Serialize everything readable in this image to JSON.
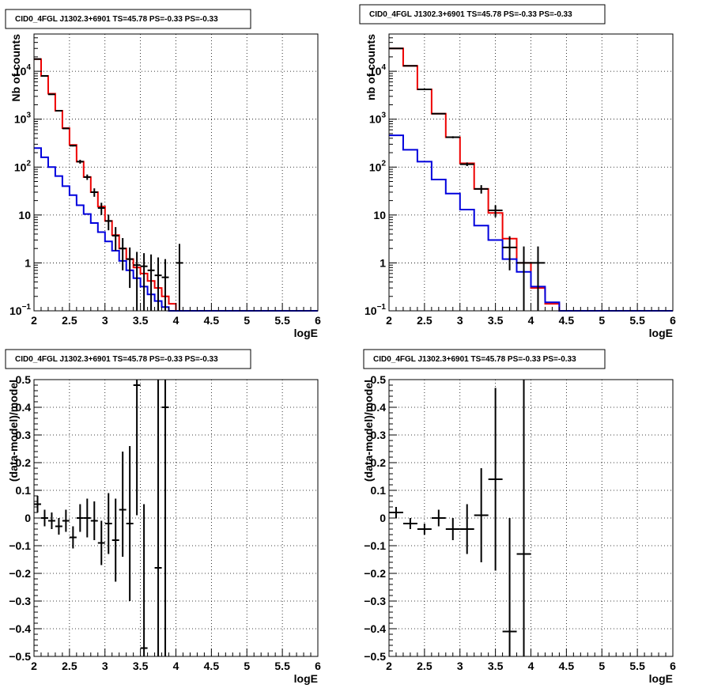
{
  "chart_data": [
    {
      "type": "step-histogram-log",
      "title": "CID0_4FGL J1302.3+6901 TS=45.78 PS=-0.33 PS=-0.33",
      "xlabel": "logE",
      "ylabel": "Nb of counts",
      "xlim": [
        2,
        6
      ],
      "ylim": [
        0.1,
        60000
      ],
      "log_y": true,
      "grid": true,
      "bin_width": 0.1,
      "x_ticks": [
        "2",
        "2.5",
        "3",
        "3.5",
        "4",
        "4.5",
        "5",
        "5.5",
        "6"
      ],
      "y_ticks": [
        {
          "v": 0.1,
          "m": "10",
          "e": "−1"
        },
        {
          "v": 1,
          "m": "1",
          "e": ""
        },
        {
          "v": 10,
          "m": "10",
          "e": ""
        },
        {
          "v": 100,
          "m": "10",
          "e": "2"
        },
        {
          "v": 1000,
          "m": "10",
          "e": "3"
        },
        {
          "v": 10000,
          "m": "10",
          "e": "4"
        }
      ],
      "series": [
        {
          "color": "#ee0000",
          "style": "step",
          "x": [
            2.05,
            2.15,
            2.25,
            2.35,
            2.45,
            2.55,
            2.65,
            2.75,
            2.85,
            2.95,
            3.05,
            3.15,
            3.25,
            3.35,
            3.45,
            3.55,
            3.65,
            3.75,
            3.85,
            3.95,
            4.05,
            4.15,
            4.25,
            4.35,
            4.45,
            4.55,
            4.65,
            4.75,
            4.85,
            4.95,
            5.05,
            5.15,
            5.25,
            5.35,
            5.45,
            5.55,
            5.65,
            5.75,
            5.85,
            5.95
          ],
          "y": [
            18000,
            8000,
            3400,
            1500,
            650,
            290,
            130,
            62,
            30,
            15,
            7.5,
            3.8,
            2.0,
            1.2,
            0.8,
            0.6,
            0.42,
            0.3,
            0.2,
            0.14,
            0.1,
            0.1,
            0.1,
            0.1,
            0.1,
            0.1,
            0.1,
            0.1,
            0.1,
            0.1,
            0.1,
            0.1,
            0.1,
            0.1,
            0.1,
            0.1,
            0.1,
            0.1,
            0.1,
            0.1
          ]
        },
        {
          "color": "#0000dd",
          "style": "step",
          "x": [
            2.05,
            2.15,
            2.25,
            2.35,
            2.45,
            2.55,
            2.65,
            2.75,
            2.85,
            2.95,
            3.05,
            3.15,
            3.25,
            3.35,
            3.45,
            3.55,
            3.65,
            3.75,
            3.85,
            3.95,
            4.05,
            4.15,
            4.25,
            4.35,
            4.45,
            4.55,
            4.65,
            4.75,
            4.85,
            4.95,
            5.05,
            5.15,
            5.25,
            5.35,
            5.45,
            5.55,
            5.65,
            5.75,
            5.85,
            5.95
          ],
          "y": [
            250,
            160,
            100,
            65,
            40,
            26,
            16,
            10.5,
            6.8,
            4.4,
            2.8,
            1.8,
            1.1,
            0.7,
            0.48,
            0.32,
            0.22,
            0.16,
            0.12,
            0.1,
            0.1,
            0.1,
            0.1,
            0.1,
            0.1,
            0.1,
            0.1,
            0.1,
            0.1,
            0.1,
            0.1,
            0.1,
            0.1,
            0.1,
            0.1,
            0.1,
            0.1,
            0.1,
            0.1,
            0.1
          ]
        },
        {
          "color": "#000000",
          "style": "points",
          "x": [
            2.05,
            2.15,
            2.25,
            2.35,
            2.45,
            2.55,
            2.65,
            2.75,
            2.85,
            2.95,
            3.05,
            3.15,
            3.25,
            3.35,
            3.45,
            3.55,
            3.65,
            3.75,
            3.85,
            4.05
          ],
          "y": [
            18000,
            8000,
            3300,
            1500,
            640,
            280,
            130,
            62,
            30,
            14,
            7.5,
            3.7,
            2.0,
            1.2,
            0.9,
            0.85,
            0.7,
            0.55,
            0.5,
            1
          ],
          "ylo": [
            17800,
            7900,
            3250,
            1480,
            630,
            270,
            118,
            54,
            24,
            10,
            4.8,
            1.8,
            0.7,
            0.3,
            0.1,
            0.1,
            0.1,
            0.1,
            0.1,
            0.1
          ],
          "yhi": [
            18200,
            8100,
            3350,
            1520,
            650,
            290,
            142,
            70,
            36,
            18,
            10.2,
            5.6,
            3.3,
            2.1,
            1.7,
            1.6,
            1.5,
            1.3,
            1.2,
            2.5
          ],
          "xerr": 0.05
        }
      ]
    },
    {
      "type": "step-histogram-log",
      "title": "CID0_4FGL J1302.3+6901 TS=45.78 PS=-0.33 PS=-0.33",
      "xlabel": "logE",
      "ylabel": "nb of counts",
      "xlim": [
        2,
        6
      ],
      "ylim": [
        0.1,
        60000
      ],
      "log_y": true,
      "grid": true,
      "bin_width": 0.2,
      "x_ticks": [
        "2",
        "2.5",
        "3",
        "3.5",
        "4",
        "4.5",
        "5",
        "5.5",
        "6"
      ],
      "y_ticks": [
        {
          "v": 0.1,
          "m": "10",
          "e": "−1"
        },
        {
          "v": 1,
          "m": "1",
          "e": ""
        },
        {
          "v": 10,
          "m": "10",
          "e": ""
        },
        {
          "v": 100,
          "m": "10",
          "e": "2"
        },
        {
          "v": 1000,
          "m": "10",
          "e": "3"
        },
        {
          "v": 10000,
          "m": "10",
          "e": "4"
        }
      ],
      "series": [
        {
          "color": "#ee0000",
          "style": "step",
          "x": [
            2.1,
            2.3,
            2.5,
            2.7,
            2.9,
            3.1,
            3.3,
            3.5,
            3.7,
            3.9,
            4.1,
            4.3,
            4.5,
            4.7,
            4.9,
            5.1,
            5.3,
            5.5,
            5.7,
            5.9
          ],
          "y": [
            30000,
            13000,
            4200,
            1300,
            420,
            120,
            35,
            11,
            3.2,
            1.0,
            0.3,
            0.14,
            0.1,
            0.1,
            0.1,
            0.1,
            0.1,
            0.1,
            0.1,
            0.1
          ]
        },
        {
          "color": "#0000dd",
          "style": "step",
          "x": [
            2.1,
            2.3,
            2.5,
            2.7,
            2.9,
            3.1,
            3.3,
            3.5,
            3.7,
            3.9,
            4.1,
            4.3,
            4.5,
            4.7,
            4.9,
            5.1,
            5.3,
            5.5,
            5.7,
            5.9
          ],
          "y": [
            460,
            230,
            130,
            55,
            28,
            13,
            6,
            3,
            1.2,
            0.65,
            0.32,
            0.15,
            0.1,
            0.1,
            0.1,
            0.1,
            0.1,
            0.1,
            0.1,
            0.1
          ]
        },
        {
          "color": "#000000",
          "style": "points",
          "x": [
            2.1,
            2.3,
            2.5,
            2.7,
            2.9,
            3.1,
            3.3,
            3.5,
            3.7,
            3.9,
            4.1
          ],
          "y": [
            30000,
            13000,
            4200,
            1300,
            420,
            115,
            35,
            12.5,
            2.1,
            1.0,
            1.0
          ],
          "ylo": [
            29800,
            12800,
            4150,
            1280,
            400,
            105,
            28,
            9,
            0.7,
            0.1,
            0.1
          ],
          "yhi": [
            30200,
            13200,
            4250,
            1320,
            440,
            125,
            42,
            16,
            3.6,
            2.2,
            2.2
          ],
          "xerr": 0.1
        }
      ]
    },
    {
      "type": "error-points",
      "title": "CID0_4FGL J1302.3+6901 TS=45.78 PS=-0.33 PS=-0.33",
      "xlabel": "logE",
      "ylabel": "(data-model)/model",
      "xlim": [
        2,
        6
      ],
      "ylim": [
        -0.5,
        0.5
      ],
      "log_y": false,
      "grid": true,
      "x_ticks": [
        "2",
        "2.5",
        "3",
        "3.5",
        "4",
        "4.5",
        "5",
        "5.5",
        "6"
      ],
      "y_ticks": [
        {
          "v": -0.5,
          "m": "−0.5",
          "e": ""
        },
        {
          "v": -0.4,
          "m": "−0.4",
          "e": ""
        },
        {
          "v": -0.3,
          "m": "−0.3",
          "e": ""
        },
        {
          "v": -0.2,
          "m": "−0.2",
          "e": ""
        },
        {
          "v": -0.1,
          "m": "−0.1",
          "e": ""
        },
        {
          "v": 0,
          "m": "0",
          "e": ""
        },
        {
          "v": 0.1,
          "m": "0.1",
          "e": ""
        },
        {
          "v": 0.2,
          "m": "0.2",
          "e": ""
        },
        {
          "v": 0.3,
          "m": "0.3",
          "e": ""
        },
        {
          "v": 0.4,
          "m": "0.4",
          "e": ""
        },
        {
          "v": 0.5,
          "m": "0.5",
          "e": ""
        }
      ],
      "series": [
        {
          "color": "#000000",
          "style": "points",
          "x": [
            2.05,
            2.15,
            2.25,
            2.35,
            2.45,
            2.55,
            2.65,
            2.75,
            2.85,
            2.95,
            3.05,
            3.15,
            3.25,
            3.35,
            3.45,
            3.55,
            3.75,
            3.85
          ],
          "y": [
            0.05,
            0.0,
            -0.01,
            -0.03,
            -0.01,
            -0.07,
            0.0,
            0.0,
            -0.01,
            -0.09,
            -0.02,
            -0.08,
            0.03,
            -0.02,
            0.48,
            -0.47,
            -0.18,
            0.4
          ],
          "ylo": [
            0.02,
            -0.03,
            -0.04,
            -0.06,
            -0.05,
            -0.11,
            -0.05,
            -0.07,
            -0.08,
            -0.17,
            -0.13,
            -0.23,
            -0.14,
            -0.3,
            0.01,
            -0.5,
            -0.5,
            -0.5
          ],
          "yhi": [
            0.08,
            0.03,
            0.02,
            0.0,
            0.03,
            -0.03,
            0.05,
            0.07,
            0.06,
            -0.01,
            0.09,
            0.07,
            0.24,
            0.26,
            0.5,
            0.05,
            0.5,
            0.5
          ],
          "xerr": 0.05
        }
      ]
    },
    {
      "type": "error-points",
      "title": "CID0_4FGL J1302.3+6901 TS=45.78 PS=-0.33 PS=-0.33",
      "xlabel": "logE",
      "ylabel": "(data-model)/model",
      "xlim": [
        2,
        6
      ],
      "ylim": [
        -0.5,
        0.5
      ],
      "log_y": false,
      "grid": true,
      "x_ticks": [
        "2",
        "2.5",
        "3",
        "3.5",
        "4",
        "4.5",
        "5",
        "5.5",
        "6"
      ],
      "y_ticks": [
        {
          "v": -0.5,
          "m": "−0.5",
          "e": ""
        },
        {
          "v": -0.4,
          "m": "−0.4",
          "e": ""
        },
        {
          "v": -0.3,
          "m": "−0.3",
          "e": ""
        },
        {
          "v": -0.2,
          "m": "−0.2",
          "e": ""
        },
        {
          "v": -0.1,
          "m": "−0.1",
          "e": ""
        },
        {
          "v": 0,
          "m": "0",
          "e": ""
        },
        {
          "v": 0.1,
          "m": "0.1",
          "e": ""
        },
        {
          "v": 0.2,
          "m": "0.2",
          "e": ""
        },
        {
          "v": 0.3,
          "m": "0.3",
          "e": ""
        },
        {
          "v": 0.4,
          "m": "0.4",
          "e": ""
        },
        {
          "v": 0.5,
          "m": "0.5",
          "e": ""
        }
      ],
      "series": [
        {
          "color": "#000000",
          "style": "points",
          "x": [
            2.1,
            2.3,
            2.5,
            2.7,
            2.9,
            3.1,
            3.3,
            3.5,
            3.7,
            3.9
          ],
          "y": [
            0.02,
            -0.02,
            -0.04,
            0.0,
            -0.04,
            -0.04,
            0.01,
            0.14,
            -0.41,
            -0.13
          ],
          "ylo": [
            0.0,
            -0.04,
            -0.06,
            -0.03,
            -0.08,
            -0.13,
            -0.16,
            -0.19,
            -0.5,
            -0.5
          ],
          "yhi": [
            0.04,
            0.0,
            -0.02,
            0.03,
            0.0,
            0.05,
            0.18,
            0.47,
            0.0,
            0.5
          ],
          "xerr": 0.1
        }
      ]
    }
  ]
}
